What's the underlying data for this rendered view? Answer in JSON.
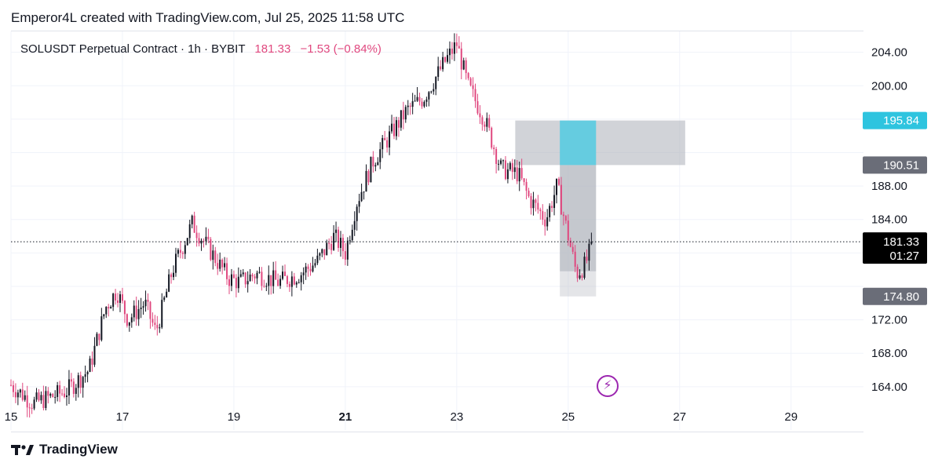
{
  "header": {
    "attribution": "Emperor4L created with TradingView.com, Jul 25, 2025 11:58 UTC"
  },
  "legend": {
    "symbol": "SOLUSDT Perpetual Contract · 1h · BYBIT",
    "last_price": "181.33",
    "change": "−1.53 (−0.84%)"
  },
  "price_tags": {
    "target_upper": "195.84",
    "entry": "190.51",
    "current_price": "181.33",
    "countdown": "01:27",
    "stop": "174.80"
  },
  "branding": {
    "name": "TradingView"
  },
  "icons": {
    "alert": "lightning-bolt-icon",
    "logo": "tradingview-logo-icon"
  },
  "colors": {
    "up": "#131722",
    "down": "#e0487f",
    "target_box": "#5fcbe0",
    "risk_box": "#b2b5be",
    "current_tag": "#000000",
    "gray_tag": "#6a6d78",
    "cyan_tag": "#2ec4df"
  },
  "chart_data": {
    "type": "candlestick",
    "timeframe": "1h",
    "x_tick_labels": [
      "15",
      "17",
      "19",
      "21",
      "23",
      "25",
      "27",
      "29"
    ],
    "x_tick_days": [
      15,
      17,
      19,
      21,
      23,
      25,
      27,
      29
    ],
    "y_tick_labels": [
      "164.00",
      "168.00",
      "172.00",
      "176.00",
      "180.00",
      "184.00",
      "188.00",
      "192.00",
      "196.00",
      "200.00",
      "204.00"
    ],
    "y_ticks": [
      164,
      168,
      172,
      176,
      180,
      184,
      188,
      192,
      196,
      200,
      204
    ],
    "ylim": [
      162.2,
      206.5
    ],
    "xlim": [
      15.0,
      30.3
    ],
    "current_price": 181.33,
    "price_path": [
      [
        15.0,
        164.2
      ],
      [
        15.4,
        162.0
      ],
      [
        16.0,
        163.5
      ],
      [
        16.4,
        166.0
      ],
      [
        16.7,
        173.5
      ],
      [
        16.9,
        175.5
      ],
      [
        17.1,
        172.0
      ],
      [
        17.4,
        174.0
      ],
      [
        17.6,
        170.5
      ],
      [
        17.9,
        178.0
      ],
      [
        18.25,
        183.5
      ],
      [
        18.5,
        181.0
      ],
      [
        18.9,
        177.0
      ],
      [
        19.1,
        176.5
      ],
      [
        19.4,
        177.5
      ],
      [
        19.8,
        176.5
      ],
      [
        20.2,
        177.5
      ],
      [
        20.5,
        179.0
      ],
      [
        20.8,
        182.0
      ],
      [
        21.0,
        180.0
      ],
      [
        21.2,
        186.0
      ],
      [
        21.5,
        191.0
      ],
      [
        21.8,
        194.0
      ],
      [
        22.1,
        197.0
      ],
      [
        22.4,
        198.5
      ],
      [
        22.8,
        203.0
      ],
      [
        23.0,
        205.0
      ],
      [
        23.2,
        200.0
      ],
      [
        23.5,
        196.0
      ],
      [
        23.8,
        190.0
      ],
      [
        24.1,
        189.5
      ],
      [
        24.3,
        186.5
      ],
      [
        24.6,
        184.0
      ],
      [
        24.8,
        188.0
      ],
      [
        25.0,
        182.0
      ],
      [
        25.15,
        177.5
      ],
      [
        25.3,
        178.5
      ],
      [
        25.45,
        181.33
      ]
    ],
    "annotations": [
      {
        "type": "box",
        "label": "target zone",
        "x_start": 24.05,
        "x_end": 27.1,
        "y_low": 190.51,
        "y_high": 195.84
      },
      {
        "type": "box",
        "label": "position box",
        "x_start": 24.85,
        "x_end": 25.5,
        "y_low": 174.8,
        "y_high": 195.84
      },
      {
        "type": "horizontal-line",
        "label": "current price",
        "y": 181.33
      }
    ]
  }
}
